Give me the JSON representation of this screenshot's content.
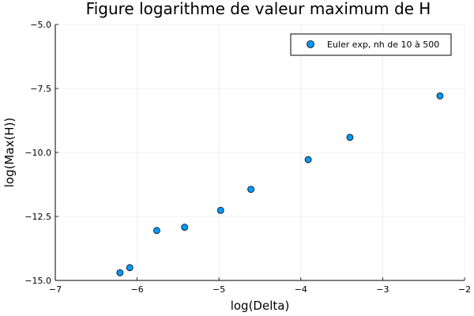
{
  "chart_data": {
    "type": "scatter",
    "title": "Figure logarithme de valeur maximum de H",
    "xlabel": "log(Delta)",
    "ylabel": "log(Max(H))",
    "xlim": [
      -7,
      -2
    ],
    "ylim": [
      -15,
      -5
    ],
    "x_ticks": [
      -7,
      -6,
      -5,
      -4,
      -3,
      -2
    ],
    "x_tick_labels": [
      "−7",
      "−6",
      "−5",
      "−4",
      "−3",
      "−2"
    ],
    "y_ticks": [
      -15,
      -12.5,
      -10,
      -7.5,
      -5
    ],
    "y_tick_labels": [
      "−15.0",
      "−12.5",
      "−10.0",
      "−7.5",
      "−5.0"
    ],
    "grid": true,
    "legend_position": "top-right",
    "series": [
      {
        "name": "Euler exp, nh de 10 à 500",
        "color": "#009AFA",
        "x": [
          -6.21,
          -6.09,
          -5.76,
          -5.42,
          -4.98,
          -4.61,
          -3.91,
          -3.4,
          -2.3
        ],
        "y": [
          -14.7,
          -14.5,
          -13.05,
          -12.92,
          -12.26,
          -11.44,
          -10.28,
          -9.41,
          -7.79
        ]
      }
    ]
  }
}
